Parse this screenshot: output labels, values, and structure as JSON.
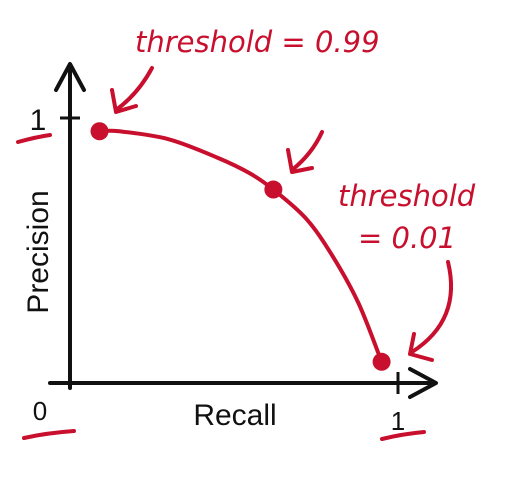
{
  "colors": {
    "ink": "#111111",
    "annotation": "#c8102e",
    "background": "#ffffff"
  },
  "chart_data": {
    "type": "line",
    "title": "",
    "xlabel": "Recall",
    "ylabel": "Precision",
    "xlim": [
      0,
      1
    ],
    "ylim": [
      0,
      1
    ],
    "grid": false,
    "x_ticks": [
      {
        "value": 0,
        "label": "0"
      },
      {
        "value": 1,
        "label": "1"
      }
    ],
    "y_ticks": [
      {
        "value": 1,
        "label": "1"
      }
    ],
    "series": [
      {
        "x": [
          0.09,
          0.15,
          0.3,
          0.45,
          0.55,
          0.62,
          0.72,
          0.8,
          0.88,
          0.95
        ],
        "y": [
          0.95,
          0.95,
          0.92,
          0.85,
          0.79,
          0.73,
          0.62,
          0.48,
          0.3,
          0.08
        ]
      }
    ],
    "highlighted_points": [
      {
        "x": 0.09,
        "y": 0.95
      },
      {
        "x": 0.62,
        "y": 0.73
      },
      {
        "x": 0.95,
        "y": 0.08
      }
    ],
    "annotations": [
      {
        "lines": [
          "threshold = 0.99"
        ],
        "points_to": 0
      },
      {
        "lines": [
          "threshold",
          "= 0.01"
        ],
        "points_to": 2
      }
    ]
  }
}
